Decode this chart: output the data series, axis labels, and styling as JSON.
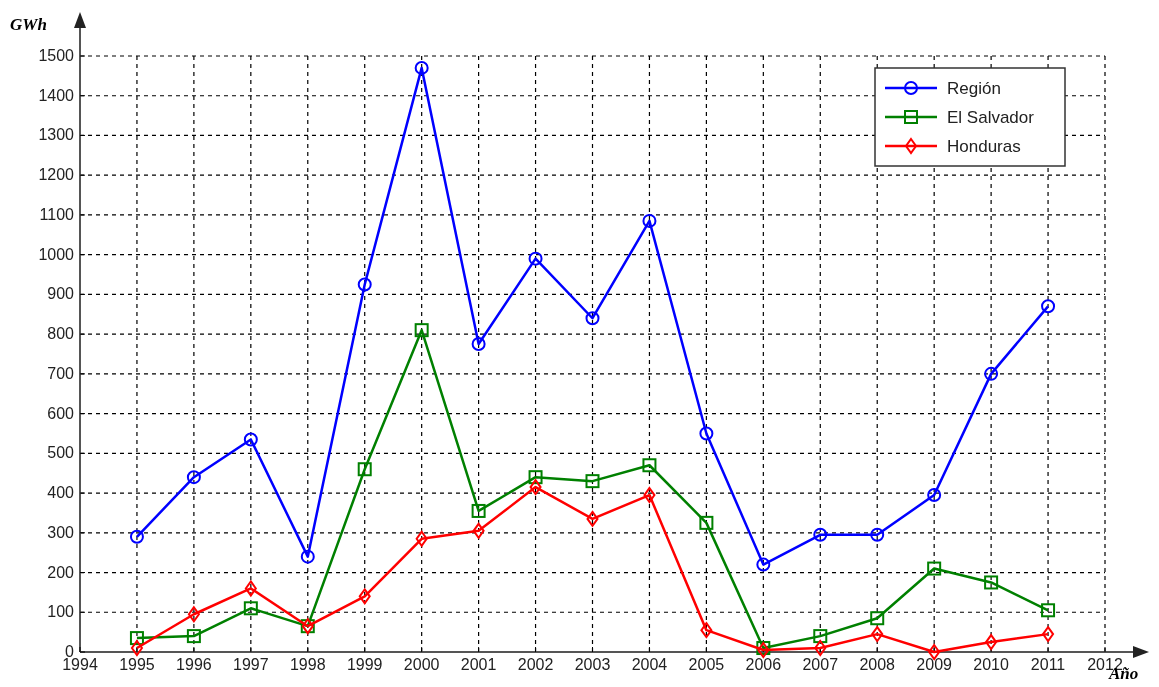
{
  "chart_data": {
    "type": "line",
    "ylabel": "GWh",
    "xlabel": "Año",
    "x": [
      1995,
      1996,
      1997,
      1998,
      1999,
      2000,
      2001,
      2002,
      2003,
      2004,
      2005,
      2006,
      2007,
      2008,
      2009,
      2010,
      2011
    ],
    "series": [
      {
        "name": "Región",
        "color": "#0000ff",
        "marker": "circle",
        "values": [
          290,
          440,
          535,
          240,
          925,
          1470,
          775,
          990,
          840,
          1085,
          550,
          220,
          295,
          295,
          395,
          700,
          870
        ]
      },
      {
        "name": "El Salvador",
        "color": "#008000",
        "marker": "square",
        "values": [
          35,
          40,
          110,
          65,
          460,
          810,
          355,
          440,
          430,
          470,
          325,
          10,
          40,
          85,
          210,
          175,
          105
        ]
      },
      {
        "name": "Honduras",
        "color": "#ff0000",
        "marker": "diamond",
        "values": [
          10,
          95,
          160,
          65,
          140,
          285,
          305,
          415,
          335,
          395,
          55,
          5,
          10,
          45,
          0,
          25,
          45
        ]
      }
    ],
    "xlim": [
      1994,
      2012
    ],
    "xticks": [
      1994,
      1995,
      1996,
      1997,
      1998,
      1999,
      2000,
      2001,
      2002,
      2003,
      2004,
      2005,
      2006,
      2007,
      2008,
      2009,
      2010,
      2011,
      2012
    ],
    "ylim": [
      0,
      1500
    ],
    "yticks": [
      0,
      100,
      200,
      300,
      400,
      500,
      600,
      700,
      800,
      900,
      1000,
      1100,
      1200,
      1300,
      1400,
      1500
    ],
    "grid": true,
    "legend": "top right",
    "line_style": "solid"
  }
}
